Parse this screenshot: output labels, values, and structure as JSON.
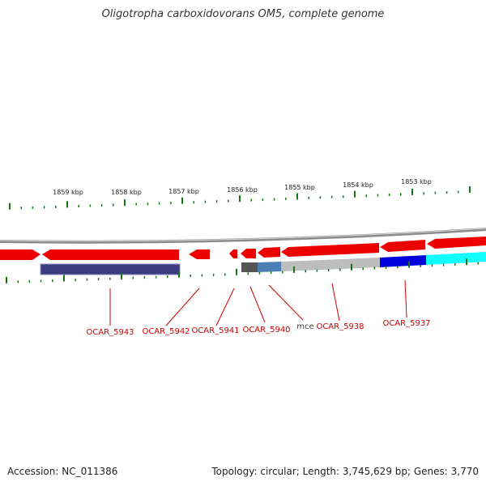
{
  "title": "Oligotropha carboxidovorans OM5, complete genome",
  "footer": {
    "accession": "Accession: NC_011386",
    "topology": "Topology: circular; Length: 3,745,629 bp; Genes: 3,770"
  },
  "colors": {
    "backbone": "#8c8c8c",
    "forward_gene": "#ee0000",
    "tick": "#117711",
    "label": "#cc0000",
    "label_dark": "#444444",
    "cog_purple": "#3b3b80",
    "cog_darkgray": "#555555",
    "cog_steelblue": "#4a7fb5",
    "cog_lightgray": "#bdbdbd",
    "cog_blue": "#0000dd",
    "cog_cyan": "#11ffff"
  },
  "scale_labels": [
    "1859 kbp",
    "1858 kbp",
    "1857 kbp",
    "1856 kbp",
    "1855 kbp",
    "1854 kbp",
    "1853 kbp"
  ],
  "genes": [
    {
      "name": "OCAR_5943",
      "color": "label"
    },
    {
      "name": "OCAR_5942",
      "color": "label"
    },
    {
      "name": "OCAR_5941",
      "color": "label"
    },
    {
      "name": "OCAR_5940",
      "color": "label"
    },
    {
      "name": "mce",
      "color": "label_dark"
    },
    {
      "name": "OCAR_5938",
      "color": "label"
    },
    {
      "name": "OCAR_5937",
      "color": "label"
    }
  ]
}
